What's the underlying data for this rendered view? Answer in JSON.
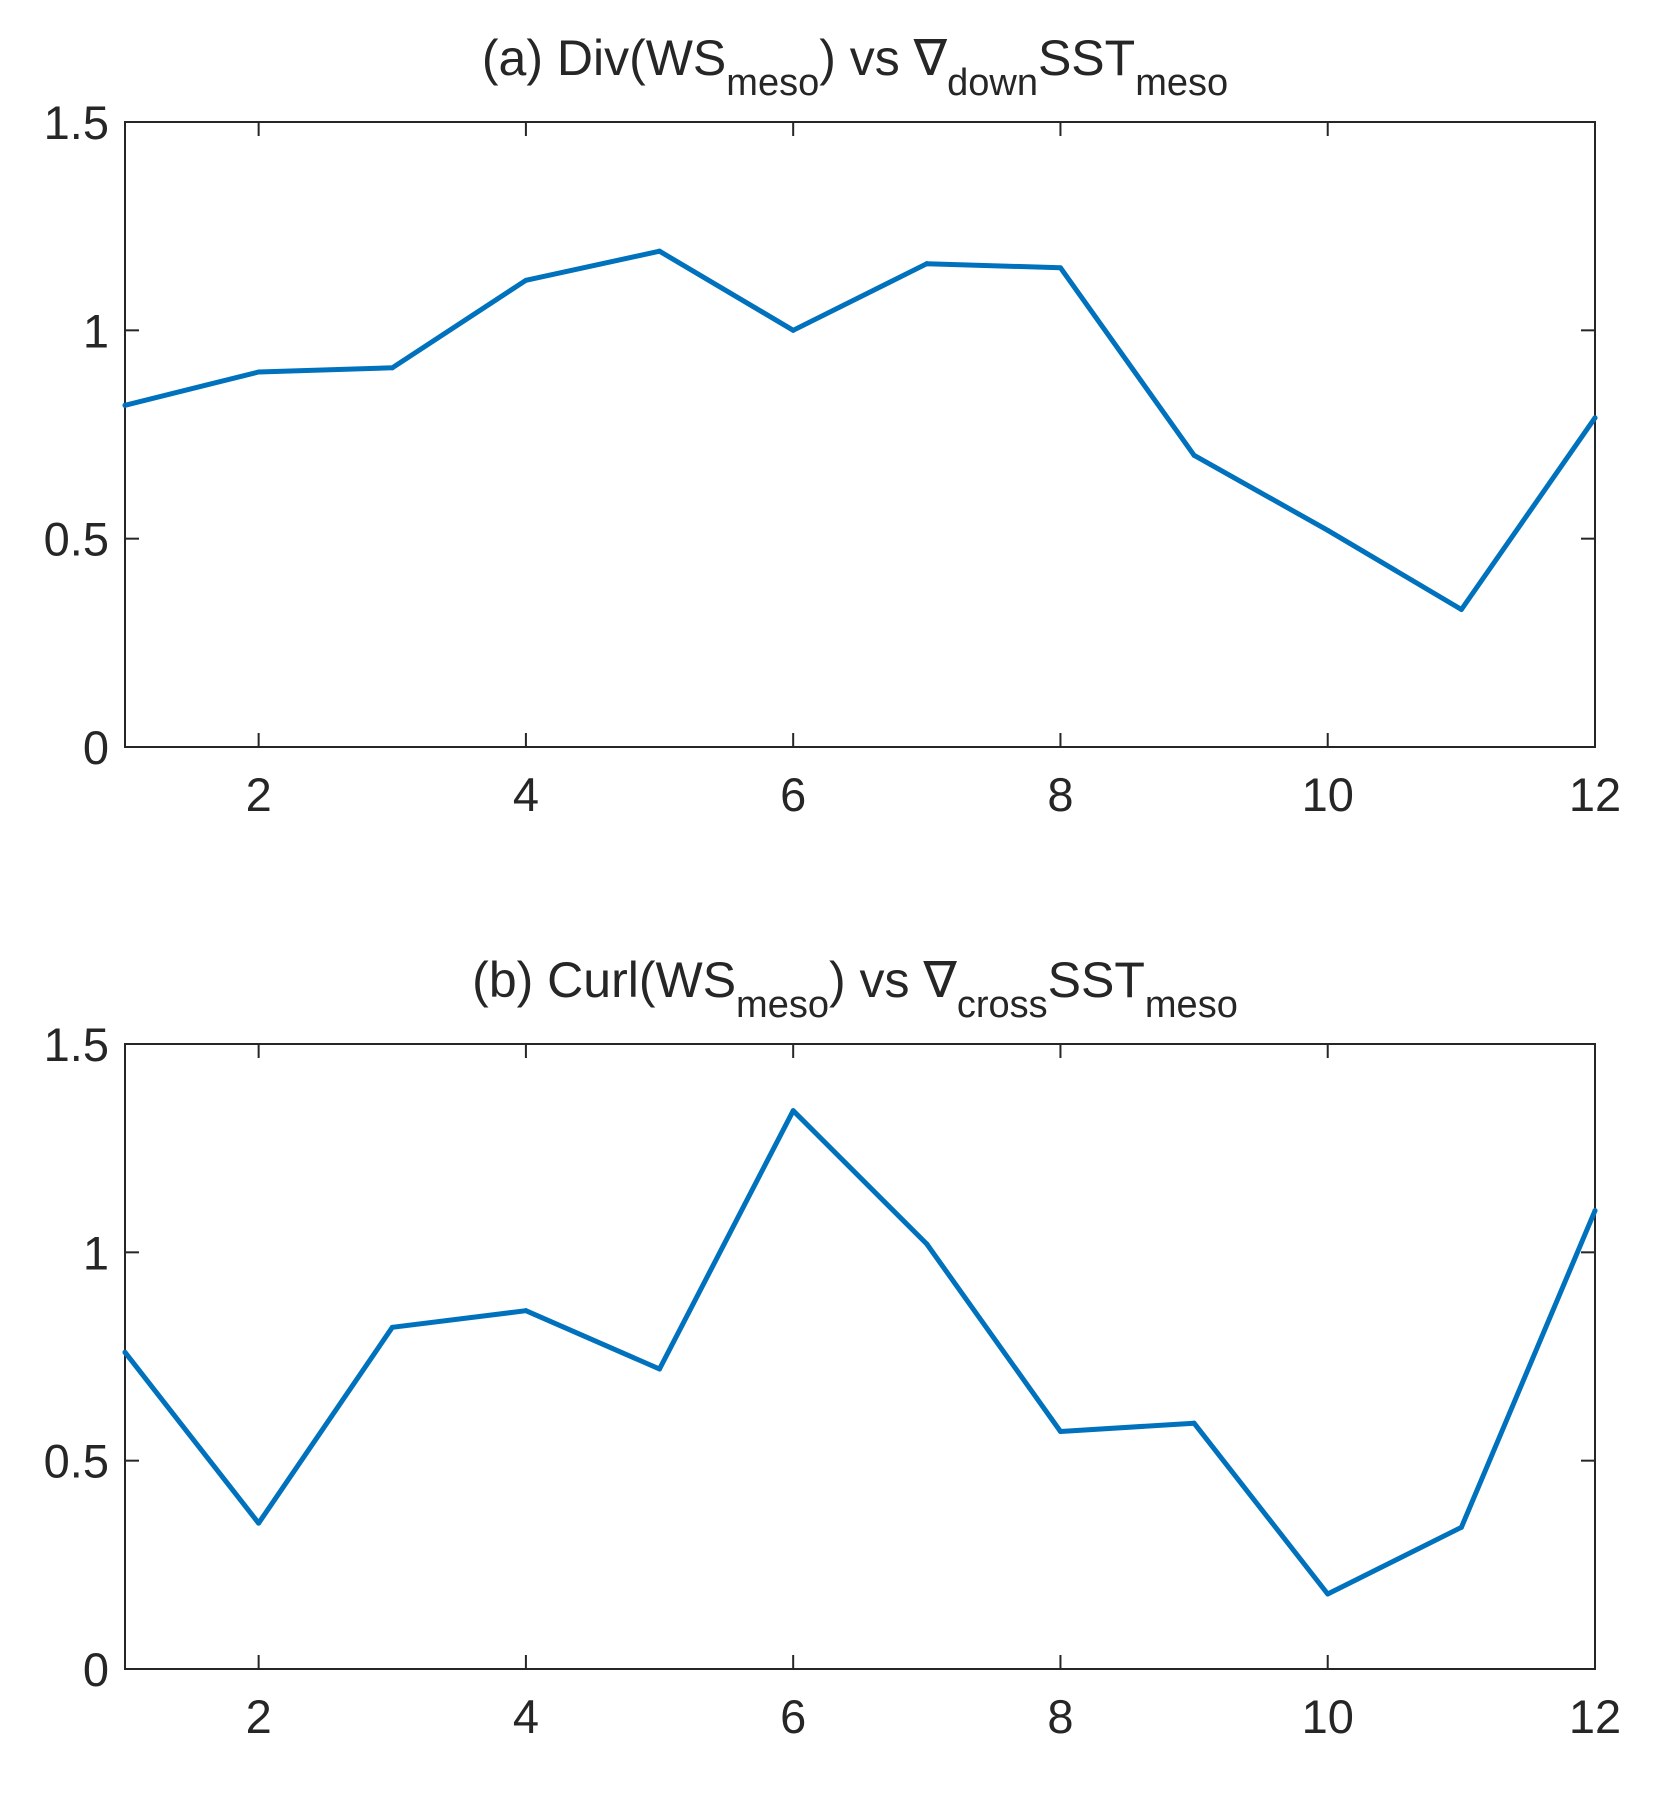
{
  "chart_data": [
    {
      "id": "a",
      "type": "line",
      "title": {
        "prefix": "(a) Div(WS",
        "sub1": "meso",
        "mid": ")  vs  ∇",
        "sub2": "down",
        "tail": "SST",
        "sub3": "meso"
      },
      "x": [
        1,
        2,
        3,
        4,
        5,
        6,
        7,
        8,
        9,
        10,
        11,
        12
      ],
      "values": [
        0.82,
        0.9,
        0.91,
        1.12,
        1.19,
        1.0,
        1.16,
        1.15,
        0.7,
        0.52,
        0.33,
        0.79
      ],
      "xlim": [
        1,
        12
      ],
      "ylim": [
        0,
        1.5
      ],
      "xticks": [
        2,
        4,
        6,
        8,
        10,
        12
      ],
      "yticks": [
        0,
        0.5,
        1,
        1.5
      ],
      "xtick_labels": [
        "2",
        "4",
        "6",
        "8",
        "10",
        "12"
      ],
      "ytick_labels": [
        "0",
        "0.5",
        "1",
        "1.5"
      ],
      "color": "#0072BD",
      "grid": false
    },
    {
      "id": "b",
      "type": "line",
      "title": {
        "prefix": "(b) Curl(WS",
        "sub1": "meso",
        "mid": ")  vs  ∇",
        "sub2": "cross",
        "tail": "SST",
        "sub3": "meso"
      },
      "x": [
        1,
        2,
        3,
        4,
        5,
        6,
        7,
        8,
        9,
        10,
        11,
        12
      ],
      "values": [
        0.76,
        0.35,
        0.82,
        0.86,
        0.72,
        1.34,
        1.02,
        0.57,
        0.59,
        0.18,
        0.34,
        1.1
      ],
      "xlim": [
        1,
        12
      ],
      "ylim": [
        0,
        1.5
      ],
      "xticks": [
        2,
        4,
        6,
        8,
        10,
        12
      ],
      "yticks": [
        0,
        0.5,
        1,
        1.5
      ],
      "xtick_labels": [
        "2",
        "4",
        "6",
        "8",
        "10",
        "12"
      ],
      "ytick_labels": [
        "0",
        "0.5",
        "1",
        "1.5"
      ],
      "color": "#0072BD",
      "grid": false
    }
  ]
}
